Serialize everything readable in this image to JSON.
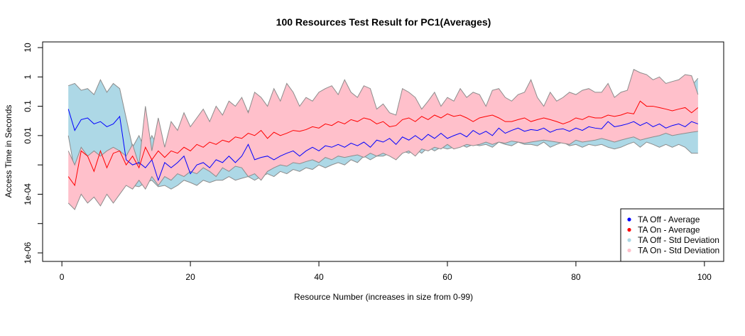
{
  "chart_data": {
    "type": "line",
    "title": "100 Resources Test Result for PC1(Averages)",
    "xlabel": "Resource Number (increases in size from 0-99)",
    "ylabel": "Access Time in Seconds",
    "xlim": [
      -3,
      103
    ],
    "ylim": [
      1e-06,
      10
    ],
    "y_scale": "log",
    "x_ticks": [
      0,
      20,
      40,
      60,
      80,
      100
    ],
    "x_tick_labels": [
      "0",
      "20",
      "40",
      "60",
      "80",
      "100"
    ],
    "y_ticks": [
      1e-06,
      1e-05,
      0.0001,
      0.001,
      0.01,
      0.1,
      1,
      10
    ],
    "y_tick_labels": [
      "1e-06",
      "",
      "1e-04",
      "",
      "0.01",
      "0.1",
      "1",
      "10"
    ],
    "legend_position": "bottom-right",
    "colors": {
      "off_avg": "#0000ff",
      "on_avg": "#ff0000",
      "off_band": "#add8e6",
      "on_band": "#ffc0cb",
      "band_edge": "#8c8c8c"
    },
    "x": [
      1,
      2,
      3,
      4,
      5,
      6,
      7,
      8,
      9,
      10,
      11,
      12,
      13,
      14,
      15,
      16,
      17,
      18,
      19,
      20,
      21,
      22,
      23,
      24,
      25,
      26,
      27,
      28,
      29,
      30,
      31,
      32,
      33,
      34,
      35,
      36,
      37,
      38,
      39,
      40,
      41,
      42,
      43,
      44,
      45,
      46,
      47,
      48,
      49,
      50,
      51,
      52,
      53,
      54,
      55,
      56,
      57,
      58,
      59,
      60,
      61,
      62,
      63,
      64,
      65,
      66,
      67,
      68,
      69,
      70,
      71,
      72,
      73,
      74,
      75,
      76,
      77,
      78,
      79,
      80,
      81,
      82,
      83,
      84,
      85,
      86,
      87,
      88,
      89,
      90,
      91,
      92,
      93,
      94,
      95,
      96,
      97,
      98,
      99
    ],
    "series": [
      {
        "name": "TA Off - Std Deviation",
        "type": "band",
        "lower": [
          0.01,
          0.0006,
          0.0003,
          0.0005,
          0.0004,
          0.0005,
          0.0004,
          0.0005,
          0.0004,
          0.0003,
          0.0002,
          0.00018,
          0.00025,
          0.0003,
          0.00018,
          0.0002,
          0.00015,
          0.0002,
          0.0003,
          0.00025,
          0.0002,
          0.0003,
          0.00025,
          0.0003,
          0.0003,
          0.0004,
          0.0003,
          0.00035,
          0.0004,
          0.0003,
          0.0004,
          0.0005,
          0.0004,
          0.0006,
          0.0005,
          0.0007,
          0.0006,
          0.0008,
          0.0007,
          0.001,
          0.0008,
          0.001,
          0.0012,
          0.001,
          0.0015,
          0.0012,
          0.002,
          0.0015,
          0.002,
          0.002,
          0.0025,
          0.0015,
          0.003,
          0.0025,
          0.0035,
          0.0025,
          0.004,
          0.003,
          0.004,
          0.0035,
          0.004,
          0.005,
          0.004,
          0.005,
          0.0045,
          0.005,
          0.004,
          0.006,
          0.005,
          0.0045,
          0.006,
          0.005,
          0.005,
          0.0045,
          0.006,
          0.004,
          0.005,
          0.006,
          0.0045,
          0.005,
          0.004,
          0.005,
          0.0045,
          0.005,
          0.004,
          0.0035,
          0.004,
          0.005,
          0.006,
          0.004,
          0.006,
          0.005,
          0.004,
          0.005,
          0.004,
          0.005,
          0.004,
          0.0025,
          0.0025
        ],
        "upper": [
          0.5,
          0.6,
          0.35,
          0.4,
          0.25,
          0.8,
          0.3,
          0.6,
          0.4,
          0.04,
          0.004,
          0.01,
          0.003,
          0.01,
          0.004,
          0.003,
          0.005,
          0.004,
          0.01,
          0.003,
          0.006,
          0.005,
          0.008,
          0.006,
          0.012,
          0.008,
          0.015,
          0.02,
          0.07,
          0.06,
          0.01,
          0.012,
          0.015,
          0.012,
          0.014,
          0.015,
          0.012,
          0.015,
          0.02,
          0.018,
          0.03,
          0.025,
          0.06,
          0.04,
          0.07,
          0.05,
          0.04,
          0.035,
          0.03,
          0.025,
          0.04,
          0.03,
          0.035,
          0.04,
          0.05,
          0.045,
          0.02,
          0.03,
          0.035,
          0.04,
          0.045,
          0.05,
          0.06,
          0.04,
          0.08,
          0.07,
          0.06,
          0.06,
          0.03,
          0.02,
          0.04,
          0.05,
          0.04,
          0.05,
          0.06,
          0.07,
          0.03,
          0.04,
          0.05,
          0.06,
          0.04,
          0.07,
          0.06,
          0.05,
          0.1,
          0.06,
          0.06,
          0.07,
          0.06,
          0.07,
          0.06,
          0.08,
          0.05,
          0.05,
          0.06,
          0.07,
          0.06,
          0.5,
          0.9
        ]
      },
      {
        "name": "TA On - Std Deviation",
        "type": "band",
        "lower": [
          5e-05,
          3e-05,
          0.0001,
          5e-05,
          8e-05,
          4e-05,
          0.0001,
          5e-05,
          0.0001,
          0.0002,
          0.00015,
          0.0003,
          0.00015,
          0.0004,
          0.0002,
          0.0004,
          0.0003,
          0.0005,
          0.0004,
          0.0006,
          0.0005,
          0.0008,
          0.0006,
          0.0004,
          0.0008,
          0.0006,
          0.0009,
          0.0008,
          0.0004,
          0.0005,
          0.0003,
          0.0006,
          0.0008,
          0.001,
          0.0009,
          0.0012,
          0.0011,
          0.0013,
          0.0015,
          0.0012,
          0.0018,
          0.0015,
          0.002,
          0.0018,
          0.002,
          0.0022,
          0.0018,
          0.0025,
          0.002,
          0.0025,
          0.002,
          0.0015,
          0.0025,
          0.003,
          0.002,
          0.0035,
          0.003,
          0.004,
          0.0035,
          0.005,
          0.0035,
          0.004,
          0.005,
          0.0045,
          0.005,
          0.006,
          0.005,
          0.006,
          0.0055,
          0.0065,
          0.006,
          0.0055,
          0.006,
          0.0065,
          0.007,
          0.0065,
          0.006,
          0.0055,
          0.005,
          0.007,
          0.006,
          0.0065,
          0.007,
          0.008,
          0.007,
          0.006,
          0.007,
          0.008,
          0.009,
          0.007,
          0.008,
          0.009,
          0.01,
          0.012,
          0.01,
          0.011,
          0.012,
          0.013,
          0.014
        ],
        "upper": [
          0.003,
          0.001,
          0.004,
          0.002,
          0.003,
          0.002,
          0.003,
          0.004,
          0.003,
          0.002,
          0.005,
          0.001,
          0.1,
          0.003,
          0.04,
          0.004,
          0.03,
          0.015,
          0.06,
          0.02,
          0.04,
          0.08,
          0.03,
          0.1,
          0.05,
          0.15,
          0.1,
          0.2,
          0.06,
          0.3,
          0.2,
          0.1,
          0.4,
          0.15,
          0.6,
          0.3,
          0.1,
          0.2,
          0.15,
          0.3,
          0.4,
          0.5,
          0.25,
          0.8,
          0.3,
          0.2,
          0.5,
          0.4,
          0.08,
          0.12,
          0.06,
          0.05,
          0.4,
          0.3,
          0.2,
          0.08,
          0.15,
          0.3,
          0.1,
          0.2,
          0.15,
          0.4,
          0.2,
          0.3,
          0.25,
          0.1,
          0.35,
          0.4,
          0.2,
          0.15,
          0.25,
          0.3,
          0.8,
          0.2,
          0.1,
          0.3,
          0.15,
          0.2,
          0.3,
          0.25,
          0.35,
          0.4,
          0.3,
          0.3,
          0.6,
          0.2,
          0.3,
          0.35,
          1.8,
          1.4,
          1.2,
          0.8,
          1.0,
          0.6,
          0.7,
          0.8,
          1.2,
          1.1,
          0.25
        ]
      },
      {
        "name": "TA Off - Average",
        "type": "line",
        "values": [
          0.08,
          0.015,
          0.035,
          0.04,
          0.025,
          0.03,
          0.02,
          0.025,
          0.045,
          0.0015,
          0.001,
          0.0012,
          0.0008,
          0.0015,
          0.0003,
          0.0012,
          0.0008,
          0.0012,
          0.002,
          0.0005,
          0.001,
          0.0012,
          0.0008,
          0.0015,
          0.0012,
          0.002,
          0.0012,
          0.002,
          0.005,
          0.0015,
          0.0018,
          0.002,
          0.0015,
          0.002,
          0.0025,
          0.003,
          0.002,
          0.003,
          0.004,
          0.003,
          0.0045,
          0.004,
          0.005,
          0.004,
          0.0055,
          0.0045,
          0.006,
          0.004,
          0.007,
          0.006,
          0.008,
          0.005,
          0.009,
          0.007,
          0.01,
          0.007,
          0.011,
          0.008,
          0.012,
          0.008,
          0.01,
          0.012,
          0.009,
          0.015,
          0.011,
          0.014,
          0.01,
          0.018,
          0.012,
          0.015,
          0.018,
          0.014,
          0.016,
          0.015,
          0.018,
          0.013,
          0.016,
          0.017,
          0.014,
          0.018,
          0.015,
          0.02,
          0.018,
          0.017,
          0.03,
          0.02,
          0.022,
          0.025,
          0.03,
          0.022,
          0.028,
          0.02,
          0.025,
          0.018,
          0.022,
          0.025,
          0.02,
          0.03,
          0.025
        ]
      },
      {
        "name": "TA On - Average",
        "type": "line",
        "values": [
          0.0004,
          0.0002,
          0.003,
          0.002,
          0.0006,
          0.003,
          0.0008,
          0.0025,
          0.003,
          0.001,
          0.002,
          0.0008,
          0.004,
          0.0015,
          0.003,
          0.0018,
          0.003,
          0.0025,
          0.004,
          0.003,
          0.005,
          0.004,
          0.006,
          0.005,
          0.007,
          0.006,
          0.009,
          0.008,
          0.012,
          0.01,
          0.015,
          0.008,
          0.013,
          0.01,
          0.012,
          0.015,
          0.014,
          0.016,
          0.02,
          0.018,
          0.025,
          0.022,
          0.03,
          0.025,
          0.035,
          0.03,
          0.04,
          0.035,
          0.025,
          0.03,
          0.02,
          0.022,
          0.035,
          0.04,
          0.03,
          0.045,
          0.035,
          0.05,
          0.04,
          0.055,
          0.045,
          0.05,
          0.04,
          0.03,
          0.04,
          0.045,
          0.05,
          0.04,
          0.03,
          0.03,
          0.035,
          0.04,
          0.03,
          0.035,
          0.04,
          0.035,
          0.03,
          0.025,
          0.03,
          0.04,
          0.035,
          0.045,
          0.04,
          0.04,
          0.05,
          0.045,
          0.05,
          0.06,
          0.055,
          0.15,
          0.1,
          0.1,
          0.09,
          0.08,
          0.07,
          0.08,
          0.09,
          0.06,
          0.09
        ]
      }
    ],
    "legend": [
      {
        "label": "TA Off - Average",
        "color": "#0000ff"
      },
      {
        "label": "TA On - Average",
        "color": "#ff0000"
      },
      {
        "label": "TA Off - Std Deviation",
        "color": "#add8e6"
      },
      {
        "label": "TA On - Std Deviation",
        "color": "#ffc0cb"
      }
    ]
  }
}
